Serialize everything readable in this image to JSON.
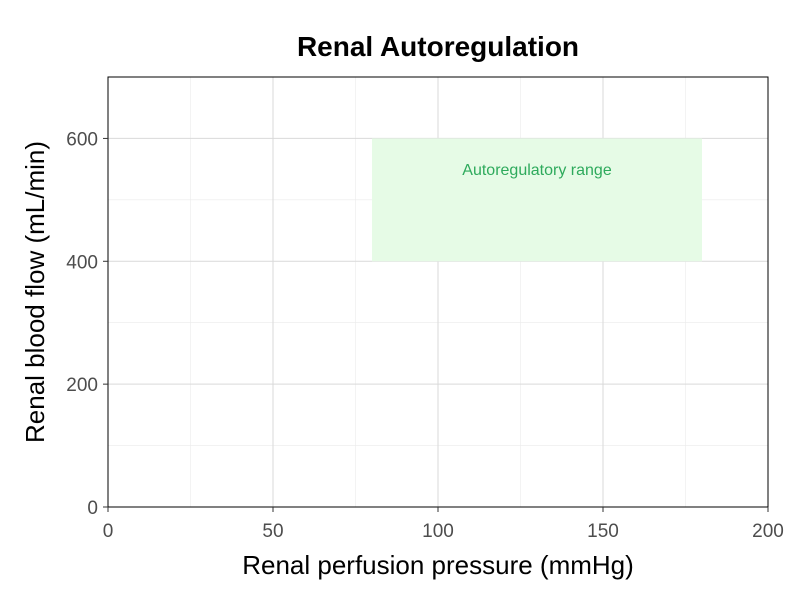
{
  "chart_data": {
    "type": "line",
    "title": "Renal Autoregulation",
    "xlabel": "Renal perfusion pressure (mmHg)",
    "ylabel": "Renal blood flow (mL/min)",
    "xlim": [
      0,
      200
    ],
    "ylim": [
      0,
      700
    ],
    "x_ticks": [
      0,
      50,
      100,
      150,
      200
    ],
    "x_tick_labels": [
      "0",
      "50",
      "100",
      "150",
      "200"
    ],
    "y_ticks": [
      0,
      200,
      400,
      600
    ],
    "y_tick_labels": [
      "0",
      "200",
      "400",
      "600"
    ],
    "x_minor_grid": [
      25,
      75,
      125,
      175
    ],
    "y_minor_grid": [
      100,
      300,
      500
    ],
    "grid": true,
    "series": [],
    "regions": [
      {
        "label": "Autoregulatory range",
        "x_range": [
          80,
          180
        ],
        "y_range": [
          400,
          600
        ],
        "label_x": 130,
        "label_y": 550,
        "fill_color": "#e6fbe6",
        "label_color": "#2eaa5c"
      }
    ]
  },
  "colors": {
    "background": "#ffffff",
    "grid_major": "#d9d9d9",
    "grid_minor": "#ebebeb",
    "axis": "#000000",
    "tick_label": "#4d4d4d",
    "title": "#000000"
  }
}
